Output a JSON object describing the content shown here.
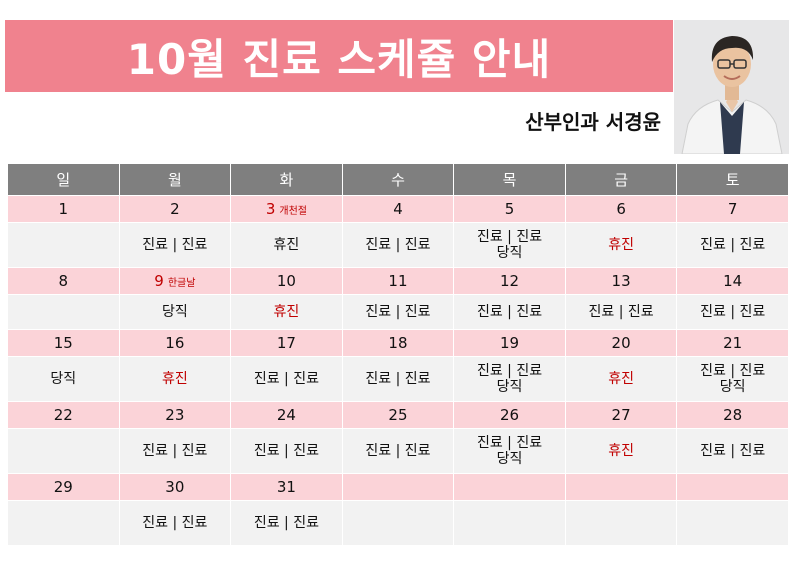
{
  "header": {
    "title": "10월 진료 스케쥴 안내",
    "doctor": "산부인과 서경윤"
  },
  "colors": {
    "title_bg": "#f0828e",
    "header_bg": "#7f7f7f",
    "day_bg": "#fbd3d8",
    "info_bg": "#f2f2f2",
    "holiday_text": "#c00000"
  },
  "weekdays": [
    "일",
    "월",
    "화",
    "수",
    "목",
    "금",
    "토"
  ],
  "weeks": [
    [
      {
        "day": "1",
        "lines": []
      },
      {
        "day": "2",
        "lines": [
          "진료 | 진료"
        ]
      },
      {
        "day": "3",
        "holiday": "개천절",
        "red": true,
        "lines": [
          "휴진"
        ]
      },
      {
        "day": "4",
        "lines": [
          "진료 | 진료"
        ]
      },
      {
        "day": "5",
        "lines": [
          "진료 | 진료",
          "당직"
        ]
      },
      {
        "day": "6",
        "red_lines": true,
        "lines": [
          "휴진"
        ]
      },
      {
        "day": "7",
        "lines": [
          "진료 | 진료"
        ]
      }
    ],
    [
      {
        "day": "8",
        "lines": []
      },
      {
        "day": "9",
        "holiday": "한글날",
        "red": true,
        "lines": [
          "당직"
        ]
      },
      {
        "day": "10",
        "red_lines": true,
        "lines": [
          "휴진"
        ]
      },
      {
        "day": "11",
        "lines": [
          "진료 | 진료"
        ]
      },
      {
        "day": "12",
        "lines": [
          "진료 | 진료"
        ]
      },
      {
        "day": "13",
        "lines": [
          "진료 | 진료"
        ]
      },
      {
        "day": "14",
        "lines": [
          "진료 | 진료"
        ]
      }
    ],
    [
      {
        "day": "15",
        "lines": [
          "당직"
        ]
      },
      {
        "day": "16",
        "red_lines": true,
        "lines": [
          "휴진"
        ]
      },
      {
        "day": "17",
        "lines": [
          "진료 | 진료"
        ]
      },
      {
        "day": "18",
        "lines": [
          "진료 | 진료"
        ]
      },
      {
        "day": "19",
        "lines": [
          "진료 | 진료",
          "당직"
        ]
      },
      {
        "day": "20",
        "red_lines": true,
        "lines": [
          "휴진"
        ]
      },
      {
        "day": "21",
        "lines": [
          "진료 | 진료",
          "당직"
        ]
      }
    ],
    [
      {
        "day": "22",
        "lines": []
      },
      {
        "day": "23",
        "lines": [
          "진료 | 진료"
        ]
      },
      {
        "day": "24",
        "lines": [
          "진료 | 진료"
        ]
      },
      {
        "day": "25",
        "lines": [
          "진료 | 진료"
        ]
      },
      {
        "day": "26",
        "lines": [
          "진료 | 진료",
          "당직"
        ]
      },
      {
        "day": "27",
        "red_lines": true,
        "lines": [
          "휴진"
        ]
      },
      {
        "day": "28",
        "lines": [
          "진료 | 진료"
        ]
      }
    ],
    [
      {
        "day": "29",
        "lines": []
      },
      {
        "day": "30",
        "lines": [
          "진료 | 진료"
        ]
      },
      {
        "day": "31",
        "lines": [
          "진료 | 진료"
        ]
      },
      {
        "day": "",
        "lines": []
      },
      {
        "day": "",
        "lines": []
      },
      {
        "day": "",
        "lines": []
      },
      {
        "day": "",
        "lines": []
      }
    ]
  ]
}
